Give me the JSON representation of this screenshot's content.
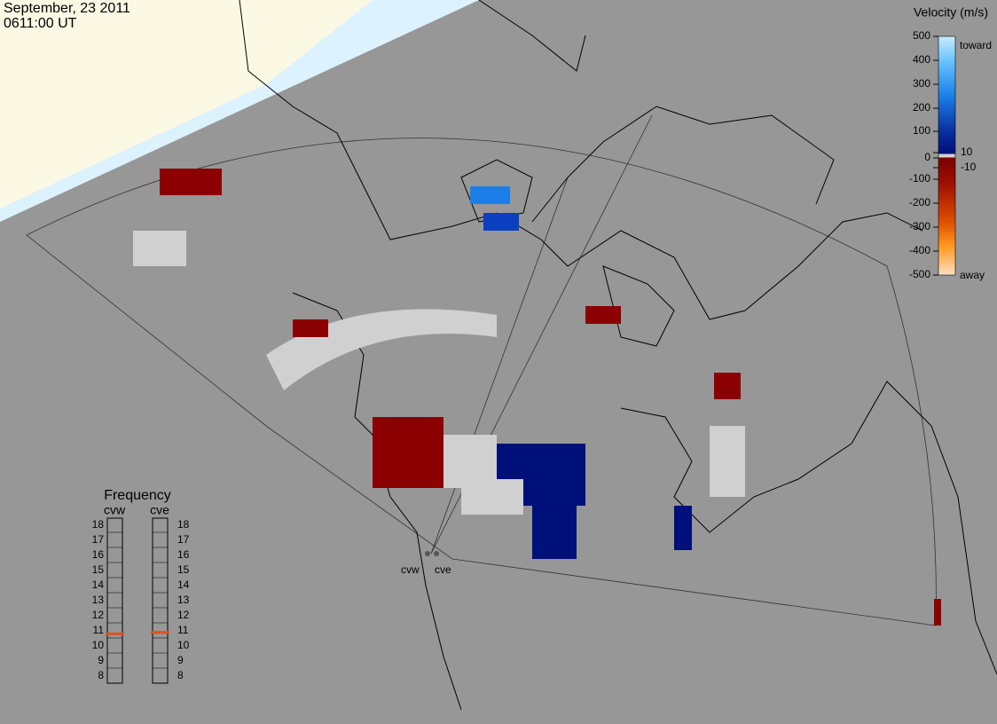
{
  "header": {
    "date": "September, 23 2011",
    "time": "0611:00 UT"
  },
  "velocity_scale": {
    "title": "Velocity (m/s)",
    "ticks": [
      500,
      400,
      300,
      200,
      100,
      10,
      0,
      -10,
      -100,
      -200,
      -300,
      -400,
      -500
    ],
    "toward": "toward",
    "away": "away"
  },
  "frequency": {
    "title": "Frequency",
    "lim": [
      8,
      18
    ],
    "ticks": [
      8,
      9,
      10,
      11,
      12,
      13,
      14,
      15,
      16,
      17,
      18
    ],
    "radars": [
      {
        "name": "cvw",
        "value": 10.8,
        "color": "#e0501e"
      },
      {
        "name": "cve",
        "value": 10.9,
        "color": "#e0501e"
      }
    ]
  }
}
